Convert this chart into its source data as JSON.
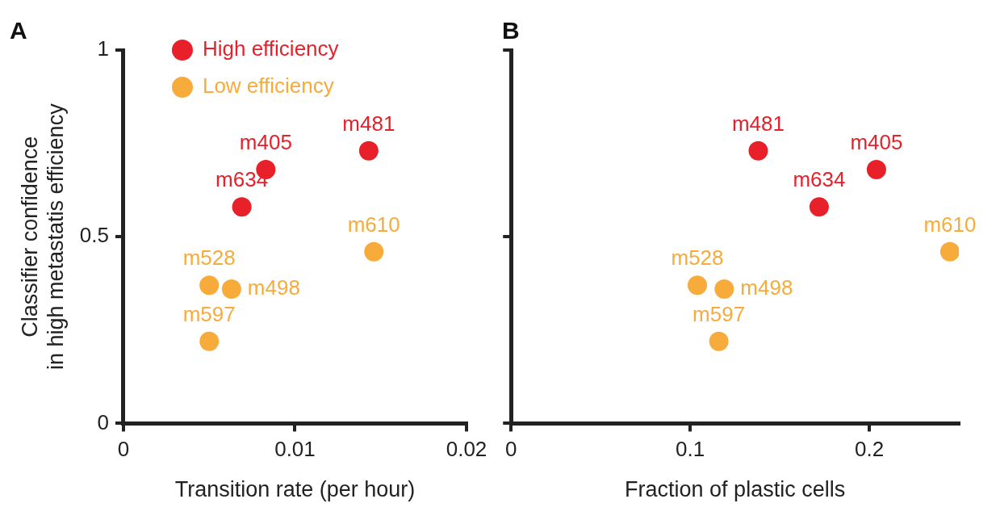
{
  "chart_data": [
    {
      "type": "scatter",
      "title": "A",
      "xlabel": "Transition rate (per hour)",
      "ylabel": "Classifier confidence in high metastatis efficiency",
      "xlim": [
        0,
        0.02
      ],
      "xticks": [
        0,
        0.01,
        0.02
      ],
      "ylim": [
        0,
        1
      ],
      "yticks": [
        0,
        0.5,
        1
      ],
      "grid": false,
      "legend": "top left",
      "marker": "circle",
      "series": [
        {
          "name": "High efficiency",
          "color": "#e8202a",
          "x": [
            0.0143,
            0.0083,
            0.0069
          ],
          "values": [
            0.73,
            0.68,
            0.58
          ],
          "value_labels": [
            "m481",
            "m405",
            "m634"
          ]
        },
        {
          "name": "Low efficiency",
          "color": "#f7ab3a",
          "x": [
            0.0146,
            0.005,
            0.0063,
            0.005
          ],
          "values": [
            0.46,
            0.37,
            0.36,
            0.22
          ],
          "value_labels": [
            "m610",
            "m528",
            "m498",
            "m597"
          ]
        }
      ]
    },
    {
      "type": "scatter",
      "title": "B",
      "xlabel": "Fraction of plastic cells",
      "xlim": [
        0,
        0.25
      ],
      "xticks": [
        0,
        0.1,
        0.2
      ],
      "ylim": [
        0,
        1
      ],
      "yticks": [
        0,
        0.5,
        1
      ],
      "grid": false,
      "tick_labels": "x",
      "marker": "circle",
      "series": [
        {
          "color": "#e8202a",
          "x": [
            0.138,
            0.204,
            0.172
          ],
          "values": [
            0.73,
            0.68,
            0.58
          ],
          "value_labels": [
            "m481",
            "m405",
            "m634"
          ]
        },
        {
          "color": "#f7ab3a",
          "x": [
            0.245,
            0.104,
            0.119,
            0.116
          ],
          "values": [
            0.46,
            0.37,
            0.36,
            0.22
          ],
          "value_labels": [
            "m610",
            "m528",
            "m498",
            "m597"
          ]
        }
      ]
    }
  ]
}
